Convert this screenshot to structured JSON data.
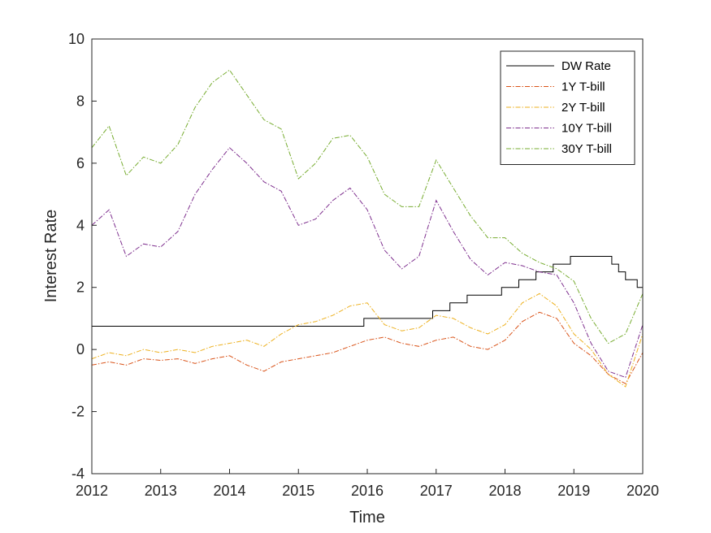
{
  "chart_data": {
    "type": "line",
    "xlabel": "Time",
    "ylabel": "Interest Rate",
    "xlim": [
      2012,
      2020
    ],
    "ylim": [
      -4,
      10
    ],
    "xticks": [
      "2012",
      "2013",
      "2014",
      "2015",
      "2016",
      "2017",
      "2018",
      "2019",
      "2020"
    ],
    "yticks": [
      "-4",
      "-2",
      "0",
      "2",
      "4",
      "6",
      "8",
      "10"
    ],
    "grid": false,
    "legend": "top-right",
    "series": [
      {
        "name": "DW Rate",
        "color": "#000000",
        "dash": "solid",
        "step": true,
        "x": [
          2012.0,
          2015.95,
          2016.95,
          2017.2,
          2017.45,
          2017.95,
          2018.2,
          2018.45,
          2018.7,
          2018.95,
          2019.55,
          2019.65,
          2019.75,
          2019.92,
          2020.0
        ],
        "y": [
          0.75,
          1.0,
          1.25,
          1.5,
          1.75,
          2.0,
          2.25,
          2.5,
          2.75,
          3.0,
          2.75,
          2.5,
          2.25,
          2.0,
          2.0
        ]
      },
      {
        "name": "1Y T-bill",
        "color": "#D95319",
        "dash": "dashdot",
        "x": [
          2012.0,
          2012.25,
          2012.5,
          2012.75,
          2013.0,
          2013.25,
          2013.5,
          2013.75,
          2014.0,
          2014.25,
          2014.5,
          2014.75,
          2015.0,
          2015.25,
          2015.5,
          2015.75,
          2016.0,
          2016.25,
          2016.5,
          2016.75,
          2017.0,
          2017.25,
          2017.5,
          2017.75,
          2018.0,
          2018.25,
          2018.5,
          2018.75,
          2019.0,
          2019.25,
          2019.5,
          2019.75,
          2020.0
        ],
        "y": [
          -0.5,
          -0.4,
          -0.5,
          -0.3,
          -0.35,
          -0.3,
          -0.45,
          -0.3,
          -0.2,
          -0.5,
          -0.7,
          -0.4,
          -0.3,
          -0.2,
          -0.1,
          0.1,
          0.3,
          0.4,
          0.2,
          0.1,
          0.3,
          0.4,
          0.1,
          0.0,
          0.3,
          0.9,
          1.2,
          1.0,
          0.2,
          -0.2,
          -0.8,
          -1.1,
          -0.1
        ]
      },
      {
        "name": "2Y T-bill",
        "color": "#EDB120",
        "dash": "dashdot",
        "x": [
          2012.0,
          2012.25,
          2012.5,
          2012.75,
          2013.0,
          2013.25,
          2013.5,
          2013.75,
          2014.0,
          2014.25,
          2014.5,
          2014.75,
          2015.0,
          2015.25,
          2015.5,
          2015.75,
          2016.0,
          2016.25,
          2016.5,
          2016.75,
          2017.0,
          2017.25,
          2017.5,
          2017.75,
          2018.0,
          2018.25,
          2018.5,
          2018.75,
          2019.0,
          2019.25,
          2019.5,
          2019.75,
          2020.0
        ],
        "y": [
          -0.3,
          -0.1,
          -0.2,
          0.0,
          -0.1,
          0.0,
          -0.1,
          0.1,
          0.2,
          0.3,
          0.1,
          0.5,
          0.8,
          0.9,
          1.1,
          1.4,
          1.5,
          0.8,
          0.6,
          0.7,
          1.1,
          1.0,
          0.7,
          0.5,
          0.8,
          1.5,
          1.8,
          1.4,
          0.5,
          0.0,
          -0.8,
          -1.2,
          0.5
        ]
      },
      {
        "name": "10Y T-bill",
        "color": "#7E2F8E",
        "dash": "dashdot",
        "x": [
          2012.0,
          2012.25,
          2012.5,
          2012.75,
          2013.0,
          2013.25,
          2013.5,
          2013.75,
          2014.0,
          2014.25,
          2014.5,
          2014.75,
          2015.0,
          2015.25,
          2015.5,
          2015.75,
          2016.0,
          2016.25,
          2016.5,
          2016.75,
          2017.0,
          2017.25,
          2017.5,
          2017.75,
          2018.0,
          2018.25,
          2018.5,
          2018.75,
          2019.0,
          2019.25,
          2019.5,
          2019.75,
          2020.0
        ],
        "y": [
          4.0,
          4.5,
          3.0,
          3.4,
          3.3,
          3.8,
          5.0,
          5.8,
          6.5,
          6.0,
          5.4,
          5.1,
          4.0,
          4.2,
          4.8,
          5.2,
          4.5,
          3.2,
          2.6,
          3.0,
          4.8,
          3.8,
          2.9,
          2.4,
          2.8,
          2.7,
          2.5,
          2.4,
          1.5,
          0.2,
          -0.7,
          -0.9,
          0.8
        ]
      },
      {
        "name": "30Y T-bill",
        "color": "#77AC30",
        "dash": "dashdot",
        "x": [
          2012.0,
          2012.25,
          2012.5,
          2012.75,
          2013.0,
          2013.25,
          2013.5,
          2013.75,
          2014.0,
          2014.25,
          2014.5,
          2014.75,
          2015.0,
          2015.25,
          2015.5,
          2015.75,
          2016.0,
          2016.25,
          2016.5,
          2016.75,
          2017.0,
          2017.25,
          2017.5,
          2017.75,
          2018.0,
          2018.25,
          2018.5,
          2018.75,
          2019.0,
          2019.25,
          2019.5,
          2019.75,
          2020.0
        ],
        "y": [
          6.5,
          7.2,
          5.6,
          6.2,
          6.0,
          6.6,
          7.8,
          8.6,
          9.0,
          8.2,
          7.4,
          7.1,
          5.5,
          6.0,
          6.8,
          6.9,
          6.2,
          5.0,
          4.6,
          4.6,
          6.1,
          5.2,
          4.3,
          3.6,
          3.6,
          3.1,
          2.8,
          2.6,
          2.2,
          1.0,
          0.2,
          0.5,
          1.8
        ]
      }
    ]
  }
}
